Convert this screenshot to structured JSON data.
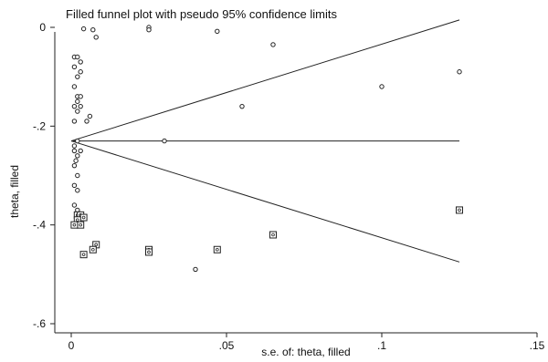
{
  "chart_data": {
    "type": "scatter",
    "title": "Filled funnel plot with pseudo 95% confidence limits",
    "xlabel": "s.e. of: theta, filled",
    "ylabel": "theta, filled",
    "xlim": [
      0,
      0.15
    ],
    "ylim": [
      -0.6,
      0
    ],
    "x_ticks": [
      {
        "value": 0,
        "label": "0"
      },
      {
        "value": 0.05,
        "label": ".05"
      },
      {
        "value": 0.1,
        "label": ".1"
      },
      {
        "value": 0.15,
        "label": ".15"
      }
    ],
    "y_ticks": [
      {
        "value": 0,
        "label": "0"
      },
      {
        "value": -0.2,
        "label": "-.2"
      },
      {
        "value": -0.4,
        "label": "-.4"
      },
      {
        "value": -0.6,
        "label": "-.6"
      }
    ],
    "pooled_estimate": -0.23,
    "funnel_limit": 0.125,
    "grid": false,
    "legend": "none",
    "series": [
      {
        "marker": "circle",
        "points": [
          [
            0.004,
            -0.003
          ],
          [
            0.007,
            -0.005
          ],
          [
            0.008,
            -0.02
          ],
          [
            0.025,
            0.0
          ],
          [
            0.025,
            -0.005
          ],
          [
            0.047,
            -0.008
          ],
          [
            0.065,
            -0.035
          ],
          [
            0.125,
            -0.09
          ],
          [
            0.1,
            -0.12
          ],
          [
            0.055,
            -0.16
          ],
          [
            0.03,
            -0.23
          ],
          [
            0.001,
            -0.06
          ],
          [
            0.002,
            -0.06
          ],
          [
            0.003,
            -0.07
          ],
          [
            0.003,
            -0.09
          ],
          [
            0.001,
            -0.08
          ],
          [
            0.002,
            -0.1
          ],
          [
            0.001,
            -0.12
          ],
          [
            0.002,
            -0.14
          ],
          [
            0.003,
            -0.14
          ],
          [
            0.001,
            -0.16
          ],
          [
            0.002,
            -0.15
          ],
          [
            0.003,
            -0.16
          ],
          [
            0.002,
            -0.17
          ],
          [
            0.001,
            -0.19
          ],
          [
            0.005,
            -0.19
          ],
          [
            0.006,
            -0.18
          ],
          [
            0.002,
            -0.23
          ],
          [
            0.001,
            -0.24
          ],
          [
            0.001,
            -0.25
          ],
          [
            0.002,
            -0.26
          ],
          [
            0.0015,
            -0.27
          ],
          [
            0.003,
            -0.25
          ],
          [
            0.001,
            -0.28
          ],
          [
            0.002,
            -0.3
          ],
          [
            0.001,
            -0.32
          ],
          [
            0.002,
            -0.33
          ],
          [
            0.001,
            -0.36
          ],
          [
            0.002,
            -0.37
          ],
          [
            0.003,
            -0.38
          ],
          [
            0.04,
            -0.49
          ]
        ]
      },
      {
        "marker": "square",
        "points": [
          [
            0.002,
            -0.38
          ],
          [
            0.003,
            -0.38
          ],
          [
            0.004,
            -0.385
          ],
          [
            0.002,
            -0.39
          ],
          [
            0.003,
            -0.4
          ],
          [
            0.001,
            -0.4
          ],
          [
            0.004,
            -0.46
          ],
          [
            0.008,
            -0.44
          ],
          [
            0.007,
            -0.45
          ],
          [
            0.025,
            -0.45
          ],
          [
            0.025,
            -0.455
          ],
          [
            0.047,
            -0.45
          ],
          [
            0.065,
            -0.42
          ],
          [
            0.125,
            -0.37
          ]
        ]
      }
    ]
  }
}
